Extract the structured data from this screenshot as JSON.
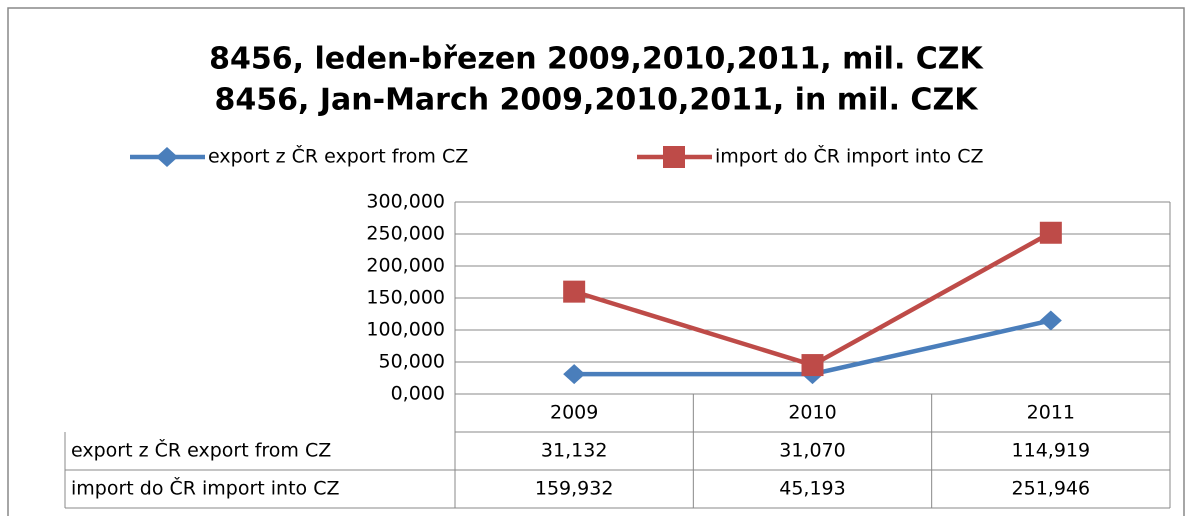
{
  "chart_data": {
    "type": "line",
    "title": "8456, leden-březen 2009,2010,2011, mil. CZK",
    "subtitle": "8456, Jan-March 2009,2010,2011, in mil. CZK",
    "categories": [
      "2009",
      "2010",
      "2011"
    ],
    "series": [
      {
        "name": "export z ČR export from CZ",
        "color": "#4a7ebb",
        "marker": "diamond",
        "values": [
          31.132,
          31.07,
          114.919
        ],
        "value_labels": [
          "31,132",
          "31,070",
          "114,919"
        ]
      },
      {
        "name": "import do ČR import into CZ",
        "color": "#be4b48",
        "marker": "square",
        "values": [
          159.932,
          45.193,
          251.946
        ],
        "value_labels": [
          "159,932",
          "45,193",
          "251,946"
        ]
      }
    ],
    "ylim": [
      0,
      300
    ],
    "yticks": [
      {
        "value": 0,
        "label": "0,000"
      },
      {
        "value": 50,
        "label": "50,000"
      },
      {
        "value": 100,
        "label": "100,000"
      },
      {
        "value": 150,
        "label": "150,000"
      },
      {
        "value": 200,
        "label": "200,000"
      },
      {
        "value": 250,
        "label": "250,000"
      },
      {
        "value": 300,
        "label": "300,000"
      }
    ],
    "grid": true,
    "legend": "top",
    "data_table": true
  }
}
